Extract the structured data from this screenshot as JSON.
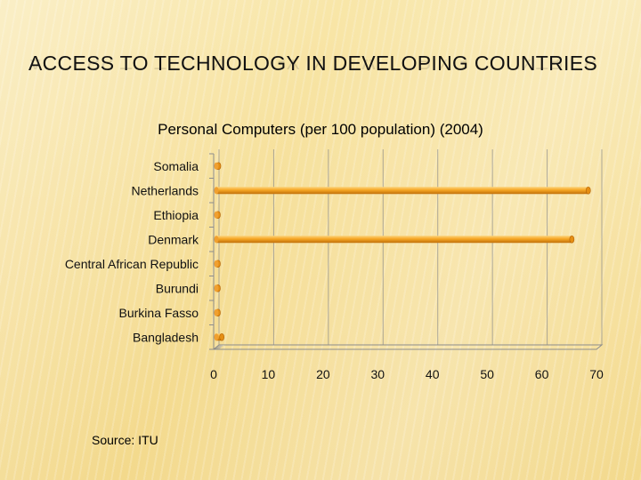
{
  "slide": {
    "title": "ACCESS TO TECHNOLOGY IN DEVELOPING COUNTRIES",
    "source": "Source: ITU"
  },
  "colors": {
    "bar": "#f5a623",
    "bar_dark": "#c06f0a",
    "gridline": "#8c8c8c"
  },
  "chart_data": {
    "type": "bar",
    "orientation": "horizontal",
    "title": "Personal Computers (per 100 population) (2004)",
    "categories": [
      "Somalia",
      "Netherlands",
      "Ethiopia",
      "Denmark",
      "Central African Republic",
      "Burundi",
      "Burkina Fasso",
      "Bangladesh"
    ],
    "values": [
      0.9,
      68.5,
      0.3,
      65.5,
      0.3,
      0.7,
      0.2,
      1.5
    ],
    "xlim": [
      0,
      70
    ],
    "xticks": [
      0,
      10,
      20,
      30,
      40,
      50,
      60,
      70
    ],
    "grid": true,
    "legend": "none"
  }
}
